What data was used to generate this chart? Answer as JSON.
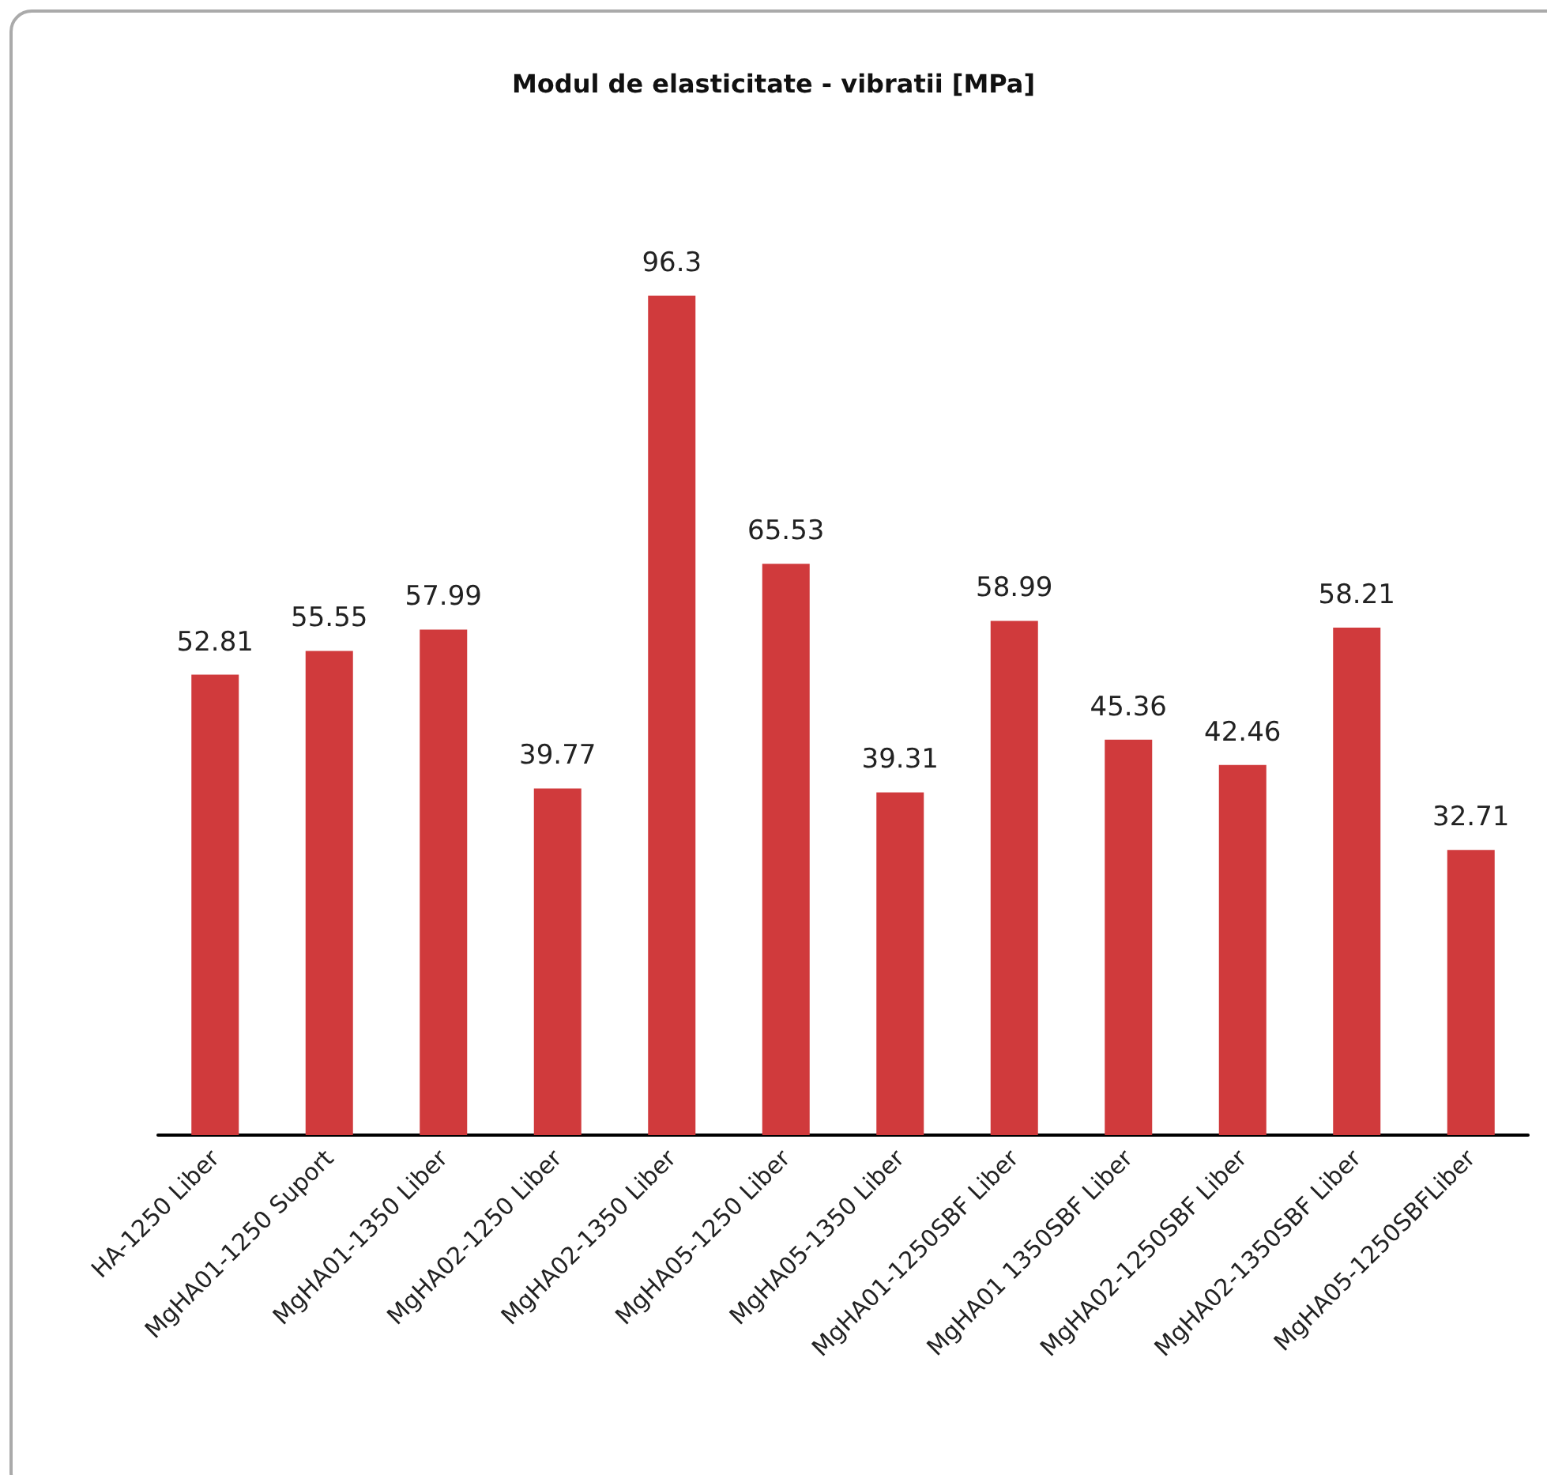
{
  "chart_data": {
    "type": "bar",
    "title": "Modul de elasticitate - vibratii [MPa]",
    "categories": [
      "HA-1250 Liber",
      "MgHA01-1250 Suport",
      "MgHA01-1350 Liber",
      "MgHA02-1250 Liber",
      "MgHA02-1350 Liber",
      "MgHA05-1250 Liber",
      "MgHA05-1350 Liber",
      "MgHA01-1250SBF Liber",
      "MgHA01 1350SBF Liber",
      "MgHA02-1250SBF Liber",
      "MgHA02-1350SBF Liber",
      "MgHA05-1250SBFLiber"
    ],
    "values": [
      52.81,
      55.55,
      57.99,
      39.77,
      96.3,
      65.53,
      39.31,
      58.99,
      45.36,
      42.46,
      58.21,
      32.71
    ],
    "color": "#d03a3c",
    "data_labels": true,
    "tick_labels": "x"
  }
}
